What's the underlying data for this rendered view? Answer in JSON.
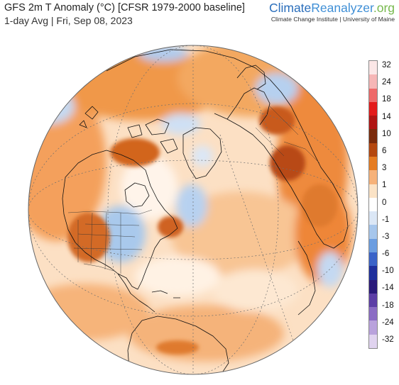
{
  "header": {
    "title": "GFS 2m T Anomaly (°C) [CFSR 1979-2000 baseline]",
    "subtitle": "1-day Avg | Fri, Sep 08, 2023"
  },
  "brand": {
    "name_part1": "Climate",
    "name_part2": "Reanalyzer",
    "name_part3": ".org",
    "tagline": "Climate Change Institute | University of Maine"
  },
  "legend": {
    "labels": [
      "32",
      "24",
      "18",
      "14",
      "10",
      "6",
      "3",
      "1",
      "0",
      "-1",
      "-3",
      "-6",
      "-10",
      "-14",
      "-18",
      "-24",
      "-32"
    ],
    "colors": [
      "#fbe7e7",
      "#f6b6b6",
      "#ee6a6a",
      "#e31b1b",
      "#b01513",
      "#7a2a0b",
      "#b4470f",
      "#e57c22",
      "#f6b27a",
      "#fbe3c6",
      "#ffffff",
      "#dbe7f6",
      "#a6c6ec",
      "#6b9de0",
      "#3a63c8",
      "#1e2f9c",
      "#2a1a7a",
      "#5c3ea6",
      "#8b6cc4",
      "#b9a2dc",
      "#e0d3ef"
    ]
  },
  "map": {
    "projection": "orthographic",
    "ocean_color": "#fce0c4",
    "warm_color": "#ef8c3d",
    "hot_color": "#c45515",
    "cool_color": "#a9c9ec",
    "cold_color": "#6fa0dd",
    "neutral_color": "#ffffff",
    "coastline_color": "#111111"
  }
}
